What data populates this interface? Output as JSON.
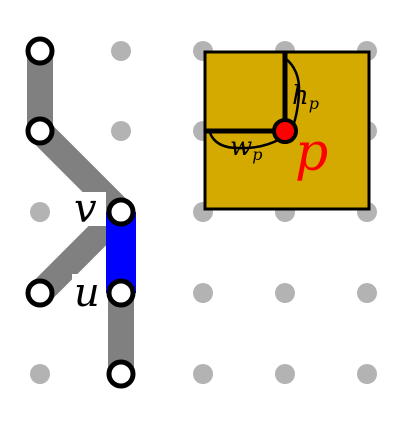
{
  "colors": {
    "grid_dot": "#b3b3b3",
    "edge_gray": "#808080",
    "edge_blue": "#0000ff",
    "vertex_fill": "#ffffff",
    "vertex_stroke": "#000000",
    "box_fill": "#d4aa00",
    "box_stroke": "#000000",
    "point_p": "#ff0000",
    "label_p": "#ff0000",
    "label_black": "#000000"
  },
  "labels": {
    "v": "v",
    "u": "u",
    "p": "p",
    "hp_base": "h",
    "hp_sub": "p",
    "wp_base": "w",
    "wp_sub": "p"
  }
}
